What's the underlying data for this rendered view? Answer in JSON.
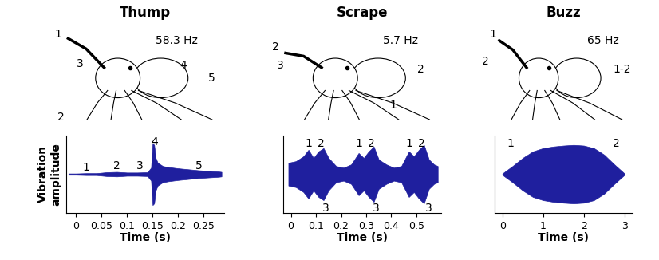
{
  "chart_data": [
    {
      "type": "area",
      "title": "Thump",
      "frequency": "58.3 Hz",
      "drawing_labels": [
        "1",
        "3",
        "2",
        "4",
        "5"
      ],
      "xlabel": "Time (s)",
      "ylabel": "Vibration\namplitude",
      "color": "#1f1f9e",
      "x": [
        -0.015,
        0,
        0.02,
        0.04,
        0.06,
        0.08,
        0.1,
        0.12,
        0.14,
        0.147,
        0.15,
        0.153,
        0.156,
        0.16,
        0.17,
        0.18,
        0.2,
        0.22,
        0.24,
        0.26,
        0.28,
        0.285
      ],
      "values": [
        0.02,
        0.02,
        0.03,
        0.03,
        0.06,
        0.07,
        0.05,
        0.05,
        0.06,
        0.2,
        0.95,
        0.9,
        0.5,
        0.35,
        0.25,
        0.22,
        0.18,
        0.15,
        0.12,
        0.1,
        0.08,
        0.07
      ],
      "xlim": [
        -0.02,
        0.29
      ],
      "xticks": [
        0,
        0.05,
        0.1,
        0.15,
        0.2,
        0.25
      ],
      "ylim": [
        -1.2,
        1.2
      ],
      "yticks": [],
      "tick_labels": "x",
      "annotations": [
        {
          "text": "1",
          "x": 0.02,
          "y": 0.2
        },
        {
          "text": "2",
          "x": 0.08,
          "y": 0.25
        },
        {
          "text": "3",
          "x": 0.125,
          "y": 0.25
        },
        {
          "text": "4",
          "x": 0.153,
          "y": 1.0
        },
        {
          "text": "5",
          "x": 0.24,
          "y": 0.25
        }
      ]
    },
    {
      "type": "area",
      "title": "Scrape",
      "frequency": "5.7 Hz",
      "drawing_labels": [
        "2",
        "3",
        "2",
        "1"
      ],
      "xlabel": "Time (s)",
      "color": "#1f1f9e",
      "x": [
        -0.01,
        0.02,
        0.05,
        0.07,
        0.09,
        0.11,
        0.13,
        0.15,
        0.18,
        0.21,
        0.24,
        0.27,
        0.29,
        0.31,
        0.33,
        0.35,
        0.38,
        0.41,
        0.44,
        0.47,
        0.49,
        0.51,
        0.53,
        0.55,
        0.57,
        0.585
      ],
      "values": [
        0.35,
        0.4,
        0.55,
        0.75,
        0.5,
        0.7,
        0.8,
        0.5,
        0.25,
        0.2,
        0.3,
        0.65,
        0.5,
        0.7,
        0.85,
        0.45,
        0.3,
        0.2,
        0.25,
        0.7,
        0.55,
        0.75,
        0.9,
        0.45,
        0.3,
        0.25
      ],
      "xlim": [
        -0.03,
        0.6
      ],
      "xticks": [
        0,
        0.1,
        0.2,
        0.3,
        0.4,
        0.5
      ],
      "ylim": [
        -1.2,
        1.2
      ],
      "yticks": [],
      "tick_labels": "x",
      "annotations": [
        {
          "text": "1",
          "x": 0.07,
          "y": 0.95
        },
        {
          "text": "2",
          "x": 0.12,
          "y": 0.95
        },
        {
          "text": "3",
          "x": 0.14,
          "y": -1.05
        },
        {
          "text": "1",
          "x": 0.27,
          "y": 0.95
        },
        {
          "text": "2",
          "x": 0.32,
          "y": 0.95
        },
        {
          "text": "3",
          "x": 0.34,
          "y": -1.05
        },
        {
          "text": "1",
          "x": 0.47,
          "y": 0.95
        },
        {
          "text": "2",
          "x": 0.52,
          "y": 0.95
        },
        {
          "text": "3",
          "x": 0.55,
          "y": -1.05
        }
      ]
    },
    {
      "type": "area",
      "title": "Buzz",
      "frequency": "65 Hz",
      "drawing_labels": [
        "1",
        "2",
        "1-2"
      ],
      "xlabel": "Time (s)",
      "color": "#1f1f9e",
      "x": [
        0,
        0.25,
        0.5,
        0.75,
        1,
        1.25,
        1.5,
        1.75,
        2,
        2.25,
        2.5,
        2.75,
        3
      ],
      "values": [
        0.02,
        0.25,
        0.5,
        0.7,
        0.8,
        0.85,
        0.88,
        0.9,
        0.88,
        0.8,
        0.6,
        0.3,
        0.02
      ],
      "xlim": [
        -0.2,
        3.2
      ],
      "xticks": [
        0,
        1,
        2,
        3
      ],
      "ylim": [
        -1.2,
        1.2
      ],
      "yticks": [],
      "tick_labels": "x",
      "annotations": [
        {
          "text": "1",
          "x": 0.2,
          "y": 0.95
        },
        {
          "text": "2",
          "x": 2.8,
          "y": 0.95
        }
      ]
    }
  ]
}
